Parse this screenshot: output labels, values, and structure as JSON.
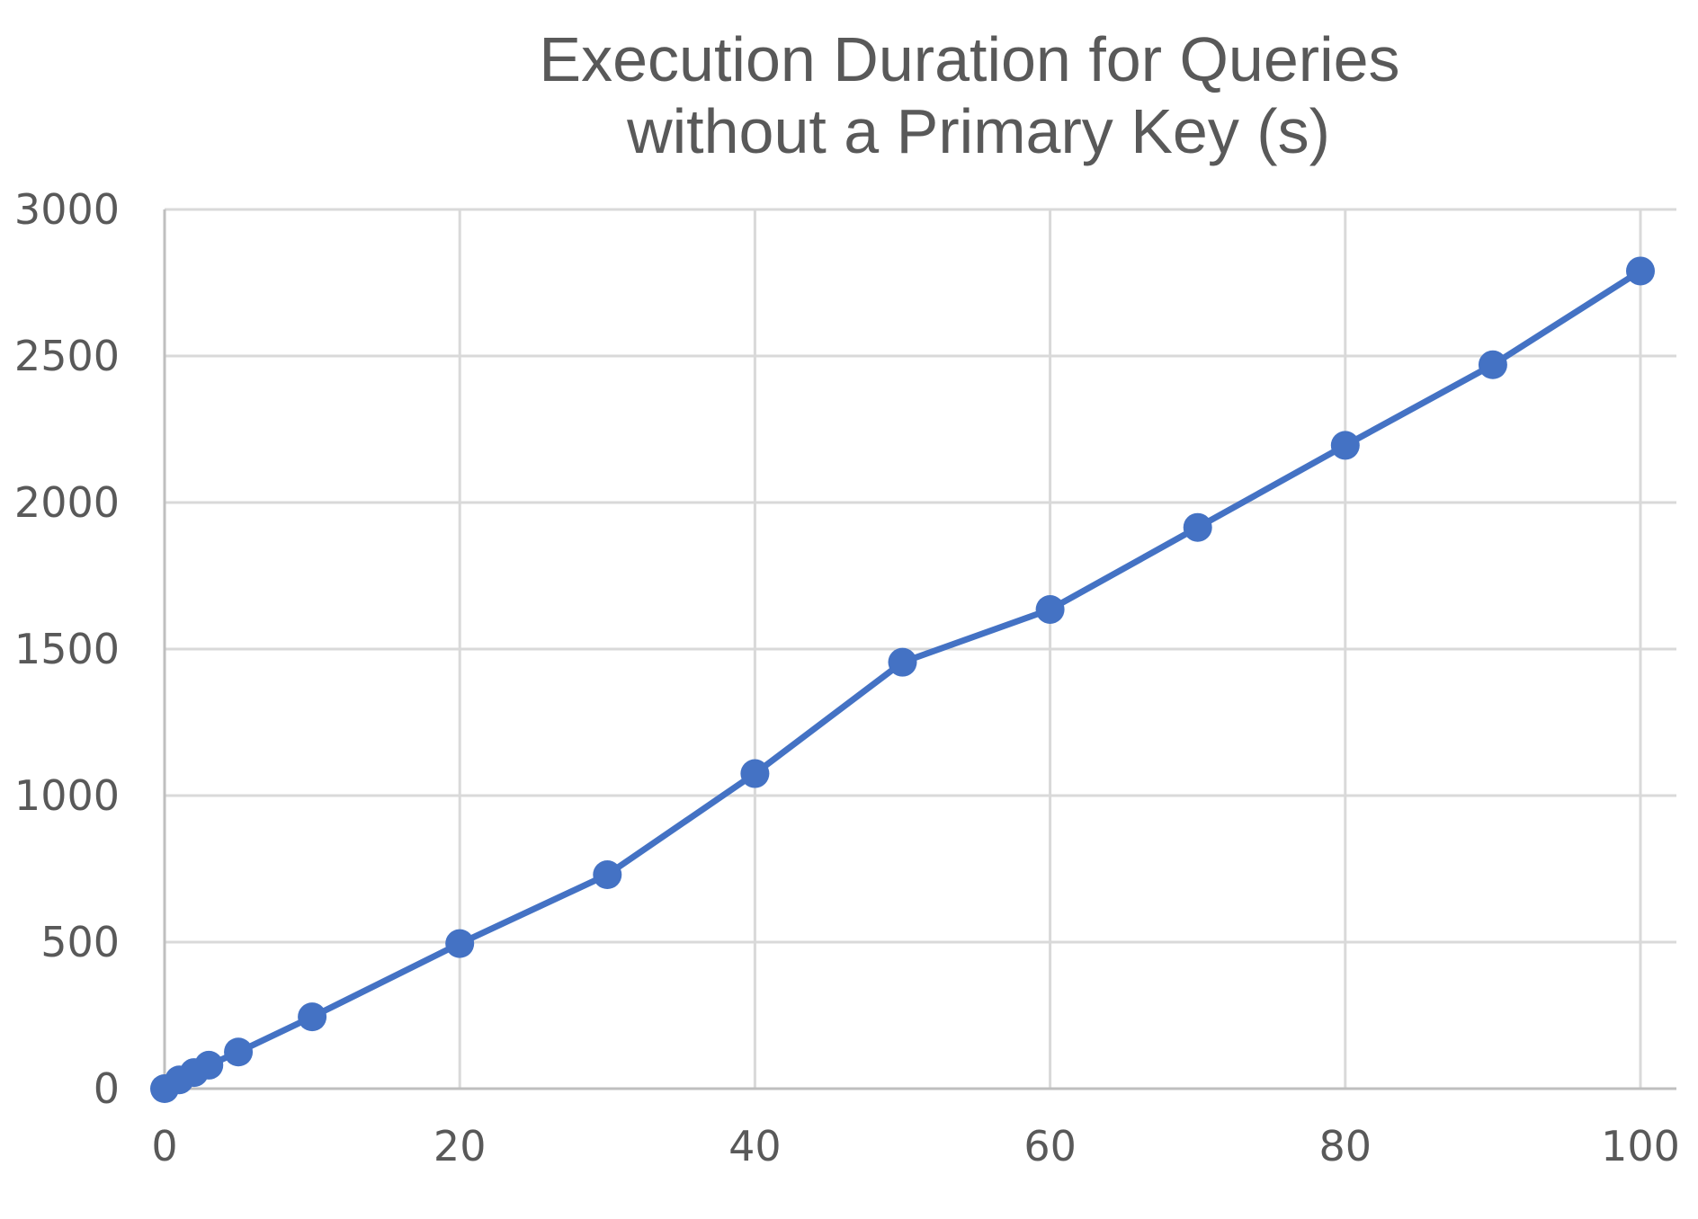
{
  "chart_data": {
    "type": "line",
    "title_lines": [
      "Execution Duration for Queries",
      "without a Primary Key (s)"
    ],
    "xlabel": "",
    "ylabel": "",
    "xlim": [
      0,
      100
    ],
    "ylim": [
      0,
      3000
    ],
    "x_ticks": [
      0,
      20,
      40,
      60,
      80,
      100
    ],
    "y_ticks": [
      0,
      500,
      1000,
      1500,
      2000,
      2500,
      3000
    ],
    "grid": true,
    "legend": "none",
    "series": [
      {
        "color": "#4472c4",
        "markers": true,
        "x": [
          0,
          1,
          2,
          3,
          5,
          10,
          20,
          30,
          40,
          50,
          60,
          70,
          80,
          90,
          100
        ],
        "y": [
          0,
          30,
          55,
          80,
          125,
          245,
          495,
          730,
          1075,
          1455,
          1635,
          1915,
          2195,
          2470,
          2790
        ]
      }
    ]
  }
}
